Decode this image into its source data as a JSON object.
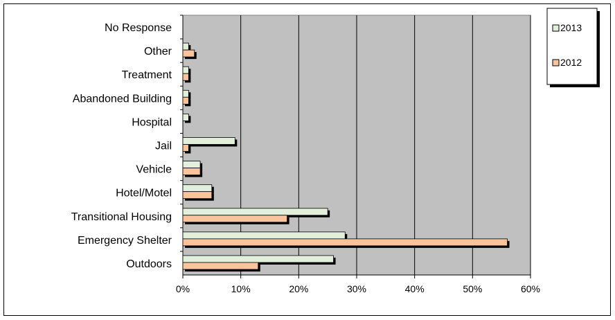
{
  "chart_data": {
    "type": "bar",
    "orientation": "horizontal",
    "title": "",
    "xlabel": "",
    "ylabel": "",
    "categories": [
      "No Response",
      "Other",
      "Treatment",
      "Abandoned Building",
      "Hospital",
      "Jail",
      "Vehicle",
      "Hotel/Motel",
      "Transitional Housing",
      "Emergency Shelter",
      "Outdoors"
    ],
    "series": [
      {
        "name": "2013",
        "color": "#e2efda",
        "values": [
          0,
          1,
          1,
          1,
          1,
          9,
          3,
          5,
          25,
          28,
          26
        ]
      },
      {
        "name": "2012",
        "color": "#f9c49b",
        "values": [
          0,
          2,
          1,
          1,
          0,
          1,
          3,
          5,
          18,
          56,
          13
        ]
      }
    ],
    "xlim": [
      0,
      60
    ],
    "xticks": [
      "0%",
      "10%",
      "20%",
      "30%",
      "40%",
      "50%",
      "60%"
    ],
    "grid": true,
    "legend": "top-right",
    "plot_background": "#c0c0c0"
  }
}
